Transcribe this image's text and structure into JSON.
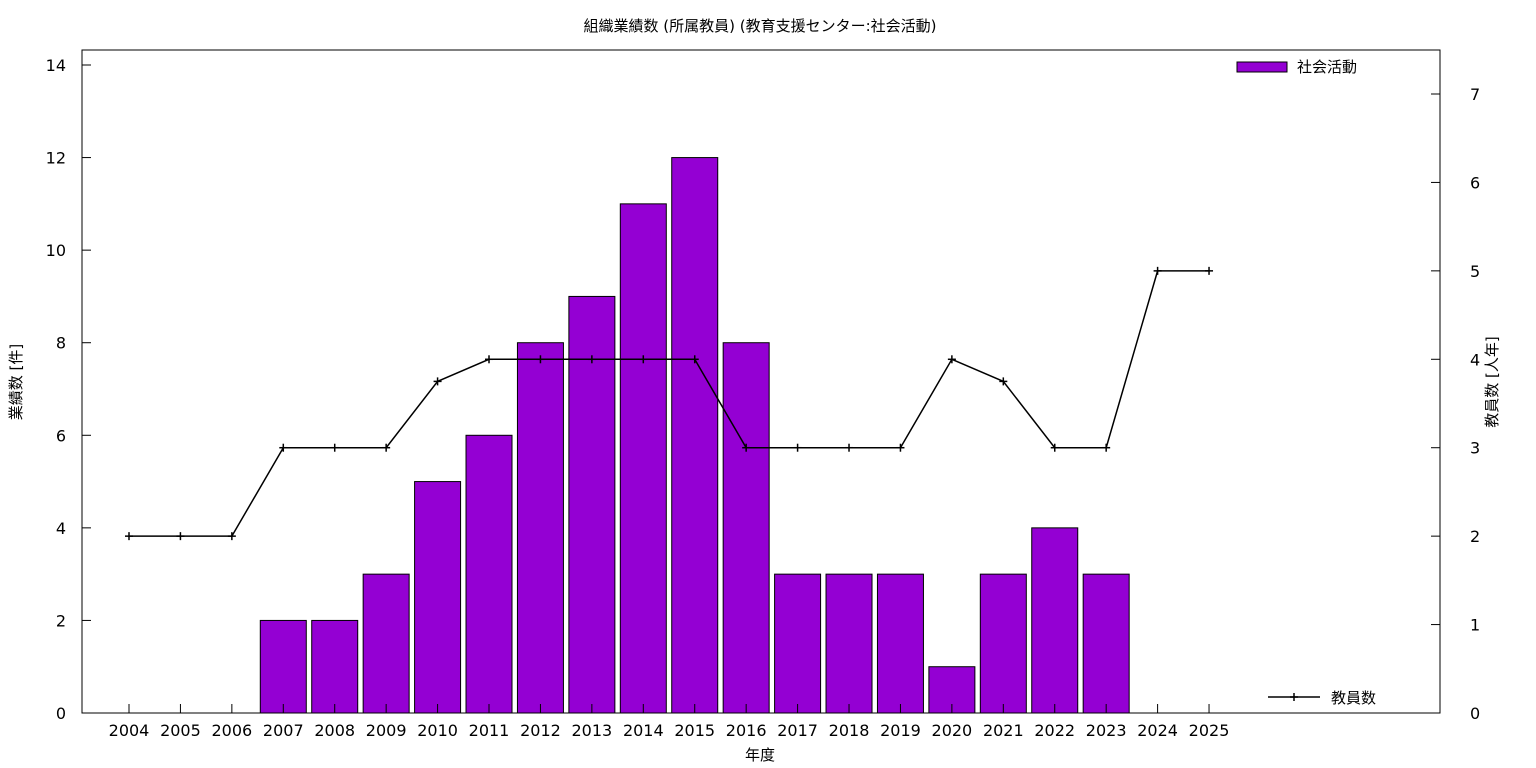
{
  "chart_data": {
    "type": "bar",
    "title": "組織業績数 (所属教員) (教育支援センター:社会活動)",
    "xlabel": "年度",
    "ylabel": "業績数 [件]",
    "y2label": "教員数 [人年]",
    "categories": [
      "2004",
      "2005",
      "2006",
      "2007",
      "2008",
      "2009",
      "2010",
      "2011",
      "2012",
      "2013",
      "2014",
      "2015",
      "2016",
      "2017",
      "2018",
      "2019",
      "2020",
      "2021",
      "2022",
      "2023",
      "2024",
      "2025"
    ],
    "ylim": [
      0,
      14
    ],
    "y2lim": [
      0,
      7.5
    ],
    "yticks": [
      0,
      2,
      4,
      6,
      8,
      10,
      12,
      14
    ],
    "y2ticks": [
      0,
      1,
      2,
      3,
      4,
      5,
      6,
      7
    ],
    "legend_position": "top-right",
    "grid": false,
    "series": [
      {
        "name": "社会活動",
        "kind": "bar",
        "axis": "left",
        "color": "#9400d3",
        "values": [
          0,
          0,
          0,
          2,
          2,
          3,
          5,
          6,
          8,
          9,
          11,
          12,
          8,
          3,
          3,
          3,
          1,
          3,
          4,
          3,
          null,
          null
        ]
      },
      {
        "name": "教員数",
        "kind": "line",
        "axis": "right",
        "color": "#000000",
        "values": [
          2,
          2,
          2,
          3,
          3,
          3,
          3.75,
          4,
          4,
          4,
          4,
          4,
          3,
          3,
          3,
          3,
          4,
          3.75,
          3,
          3,
          5,
          5
        ]
      }
    ]
  }
}
